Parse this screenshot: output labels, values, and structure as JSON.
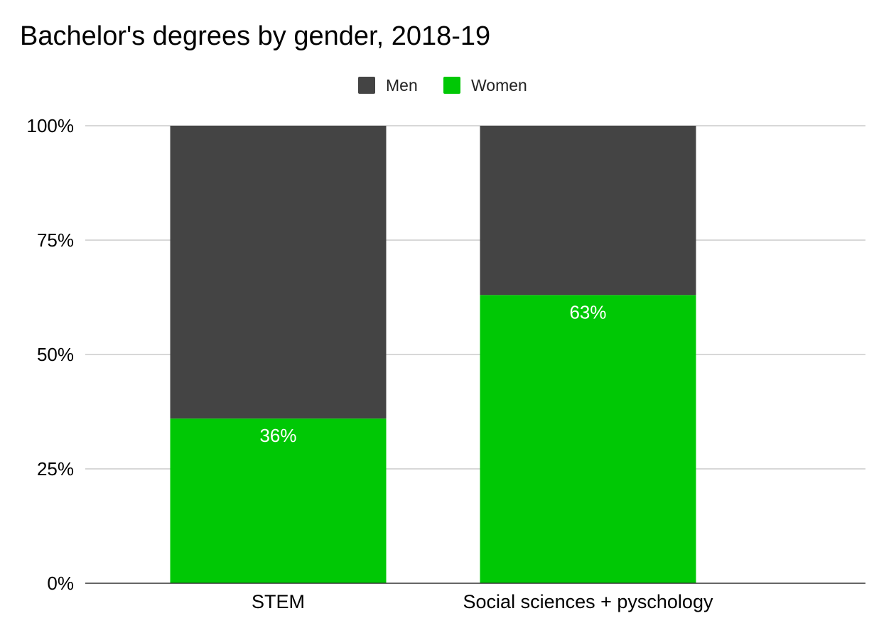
{
  "chart_data": {
    "type": "bar",
    "stacked": true,
    "title": "Bachelor's degrees by gender, 2018-19",
    "categories": [
      "STEM",
      "Social sciences + pyschology"
    ],
    "series": [
      {
        "name": "Women",
        "values": [
          36,
          63
        ],
        "labels": [
          "36%",
          "63%"
        ],
        "color": "#00c805"
      },
      {
        "name": "Men",
        "values": [
          64,
          37
        ],
        "color": "#444444"
      }
    ],
    "legend_order": [
      "Men",
      "Women"
    ],
    "legend_position": "top",
    "ylim": [
      0,
      100
    ],
    "yticks": [
      0,
      25,
      50,
      75,
      100
    ],
    "ytick_labels": [
      "0%",
      "25%",
      "50%",
      "75%",
      "100%"
    ],
    "grid": true,
    "xlabel": "",
    "ylabel": ""
  }
}
